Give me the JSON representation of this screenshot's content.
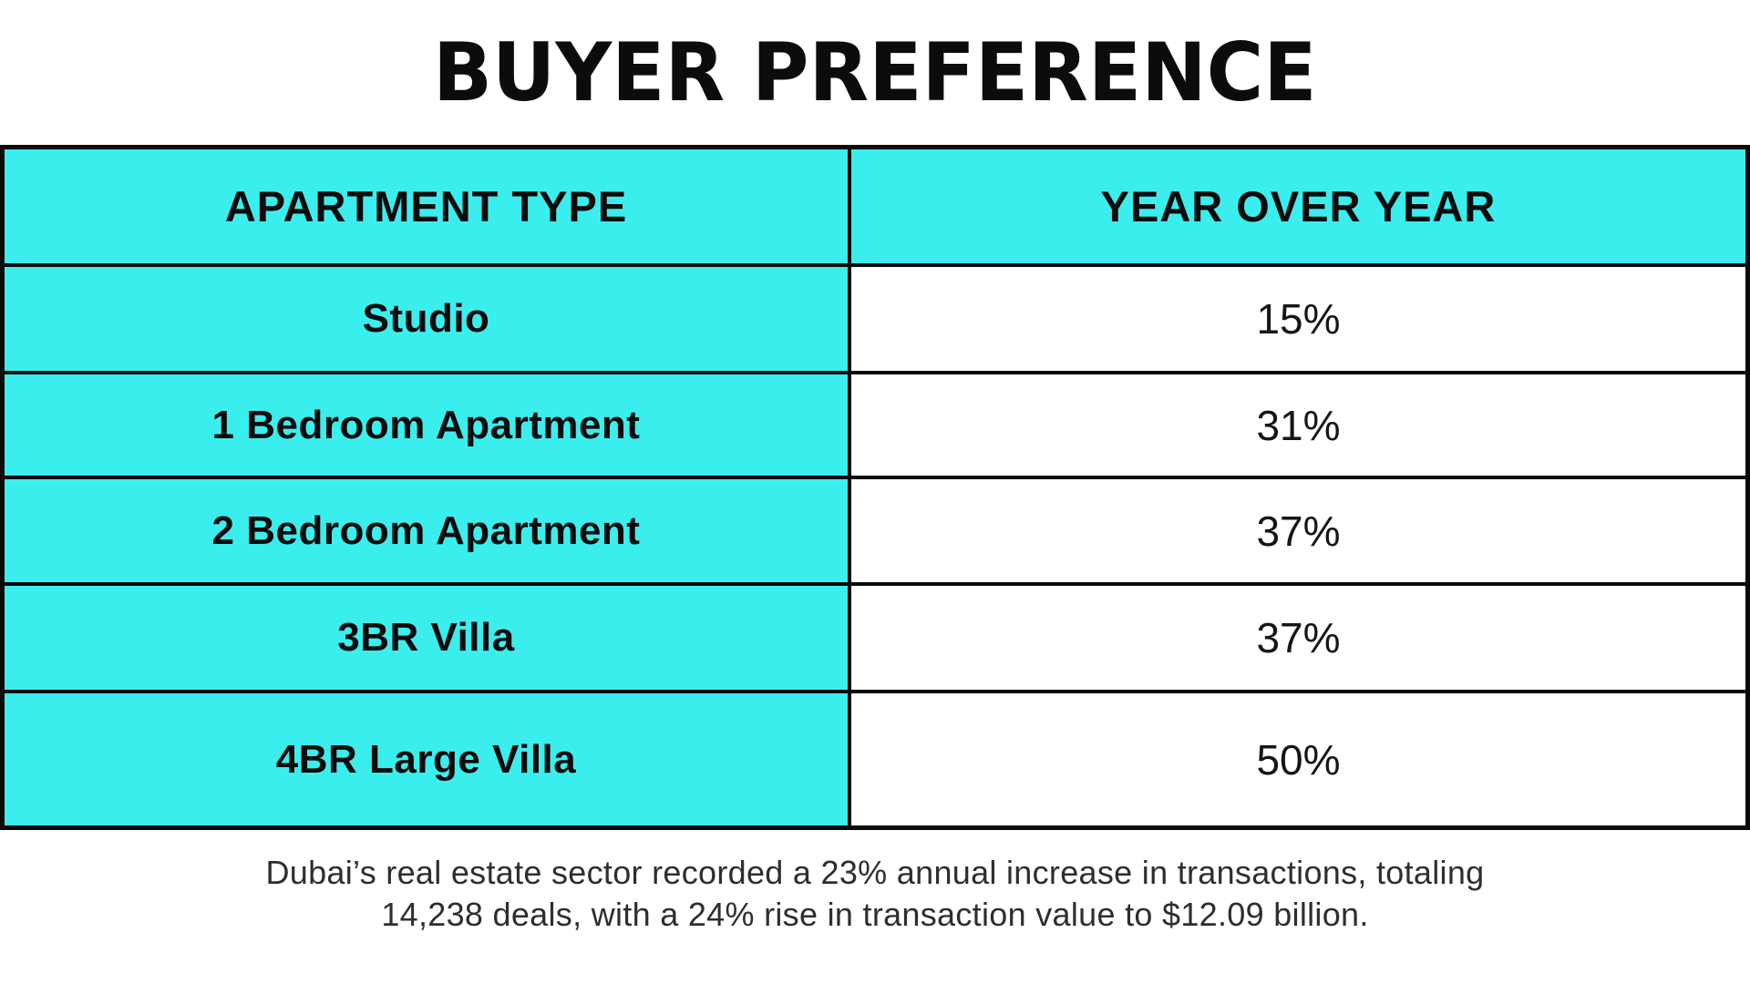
{
  "title": "BUYER PREFERENCE",
  "colors": {
    "accent_cyan": "#3beeee",
    "border_black": "#0b0b0b",
    "caption_gray": "#2e2e2e"
  },
  "table": {
    "columns": [
      "APARTMENT TYPE",
      "YEAR OVER YEAR"
    ],
    "rows": [
      {
        "type": "Studio",
        "yoy": "15%"
      },
      {
        "type": "1 Bedroom Apartment",
        "yoy": "31%"
      },
      {
        "type": "2 Bedroom Apartment",
        "yoy": "37%"
      },
      {
        "type": "3BR Villa",
        "yoy": "37%"
      },
      {
        "type": "4BR Large Villa",
        "yoy": "50%"
      }
    ]
  },
  "caption": {
    "line1": "Dubai’s real estate sector recorded a 23% annual increase in transactions, totaling",
    "line2": "14,238 deals, with a 24% rise in transaction value to $12.09 billion."
  },
  "chart_data": {
    "type": "table",
    "title": "BUYER PREFERENCE",
    "columns": [
      "APARTMENT TYPE",
      "YEAR OVER YEAR"
    ],
    "categories": [
      "Studio",
      "1 Bedroom Apartment",
      "2 Bedroom Apartment",
      "3BR Villa",
      "4BR Large Villa"
    ],
    "values": [
      15,
      31,
      37,
      37,
      50
    ],
    "unit": "%",
    "note": "Dubai’s real estate sector recorded a 23% annual increase in transactions, totaling 14,238 deals, with a 24% rise in transaction value to $12.09 billion."
  }
}
